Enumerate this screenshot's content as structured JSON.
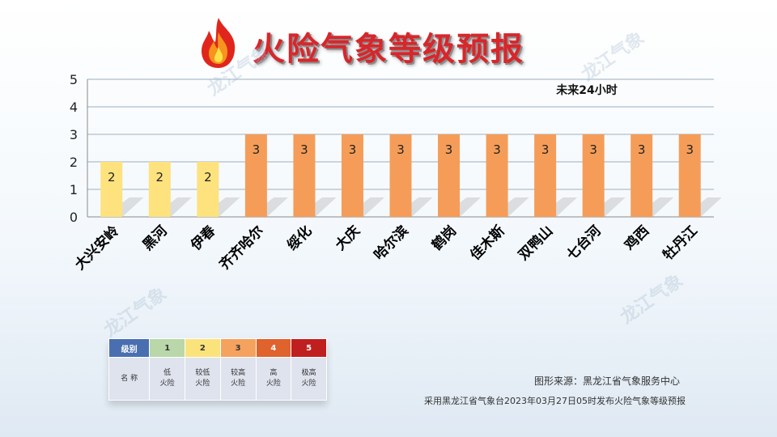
{
  "header": {
    "title": "火险气象等级预报"
  },
  "watermark_text": "龙江气象",
  "chart_data": {
    "type": "bar",
    "annotation": "未来24小时",
    "categories": [
      "大兴安岭",
      "黑河",
      "伊春",
      "齐齐哈尔",
      "绥化",
      "大庆",
      "哈尔滨",
      "鹤岗",
      "佳木斯",
      "双鸭山",
      "七台河",
      "鸡西",
      "牡丹江"
    ],
    "values": [
      2,
      2,
      2,
      3,
      3,
      3,
      3,
      3,
      3,
      3,
      3,
      3,
      3
    ],
    "ylim": [
      0,
      5
    ],
    "yticks": [
      "0",
      "1",
      "2",
      "3",
      "4",
      "5"
    ],
    "grid": true,
    "level_colors": {
      "2": "#fde27e",
      "3": "#f59d58"
    }
  },
  "legend": {
    "header": [
      "级别",
      "1",
      "2",
      "3",
      "4",
      "5"
    ],
    "header_colors": [
      "#4a6fb0",
      "#b9d7a8",
      "#fbe37c",
      "#f5a25e",
      "#e0622d",
      "#c01f1f"
    ],
    "row_label": "名 称",
    "names": [
      [
        "低",
        "火险"
      ],
      [
        "较低",
        "火险"
      ],
      [
        "较高",
        "火险"
      ],
      [
        "高",
        "火险"
      ],
      [
        "极高",
        "火险"
      ]
    ]
  },
  "footer": {
    "source": "图形来源：黑龙江省气象服务中心",
    "issued": "采用黑龙江省气象台2023年03月27日05时发布火险气象等级预报"
  }
}
